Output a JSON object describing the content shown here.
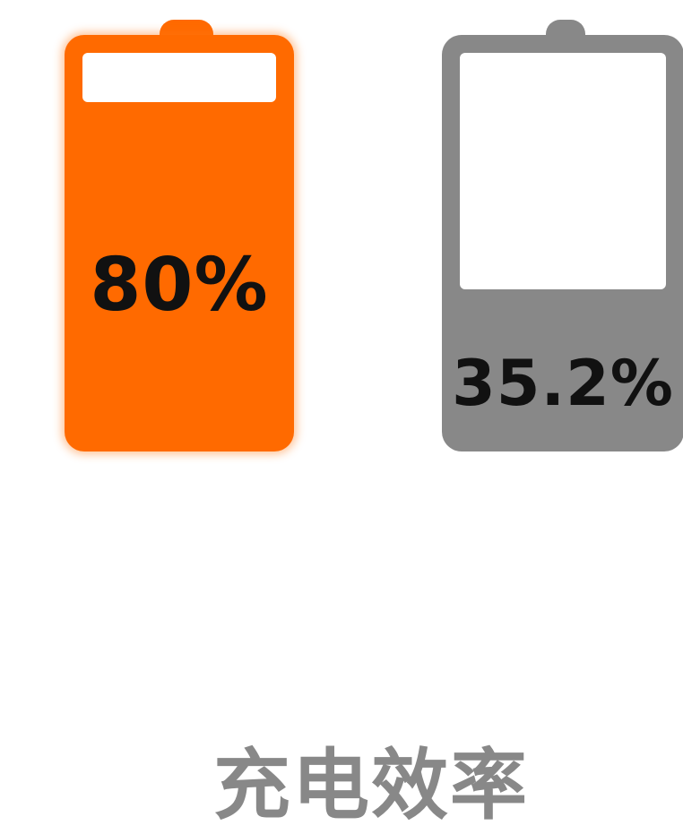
{
  "left_battery": {
    "label": "80%",
    "level": 0.8,
    "color": "#ff6a00"
  },
  "right_battery": {
    "label": "35.2%",
    "level": 0.352,
    "color": "#888888"
  },
  "caption": {
    "text": "充电效率",
    "color": "#888888"
  }
}
